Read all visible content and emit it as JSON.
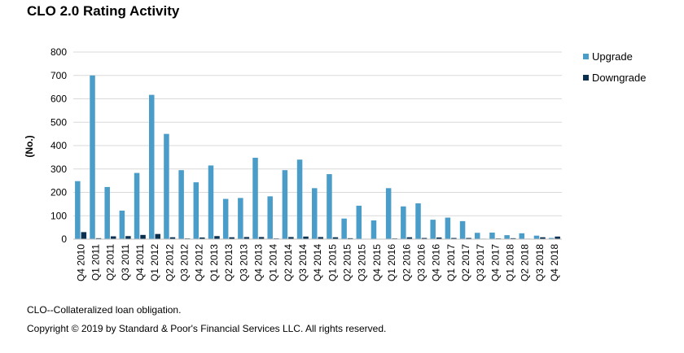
{
  "chart_data": {
    "type": "bar",
    "title": "CLO 2.0 Rating Activity",
    "ylabel": "(No.)",
    "xlabel": "",
    "ylim": [
      0,
      800
    ],
    "yticks": [
      0,
      100,
      200,
      300,
      400,
      500,
      600,
      700,
      800
    ],
    "grid": true,
    "legend_position": "right",
    "categories": [
      "Q4 2010",
      "Q1 2011",
      "Q2 2011",
      "Q3 2011",
      "Q4 2011",
      "Q1 2012",
      "Q2 2012",
      "Q3 2012",
      "Q4 2012",
      "Q1 2013",
      "Q2 2013",
      "Q3 2013",
      "Q4 2013",
      "Q1 2014",
      "Q2 2014",
      "Q3 2014",
      "Q4 2014",
      "Q1 2015",
      "Q2 2015",
      "Q3 2015",
      "Q4 2015",
      "Q1 2016",
      "Q2 2016",
      "Q3 2016",
      "Q4 2016",
      "Q1 2017",
      "Q2 2017",
      "Q3 2017",
      "Q4 2017",
      "Q1 2018",
      "Q2 2018",
      "Q3 2018",
      "Q4 2018"
    ],
    "series": [
      {
        "name": "Upgrade",
        "color": "#4a9cc9",
        "values": [
          248,
          700,
          223,
          122,
          283,
          617,
          450,
          295,
          243,
          315,
          172,
          176,
          348,
          183,
          295,
          340,
          218,
          278,
          88,
          143,
          80,
          218,
          140,
          153,
          83,
          92,
          77,
          27,
          28,
          17,
          25,
          15,
          5
        ]
      },
      {
        "name": "Downgrade",
        "color": "#0b2f4f",
        "values": [
          30,
          4,
          12,
          13,
          18,
          22,
          8,
          3,
          7,
          13,
          8,
          9,
          9,
          3,
          9,
          11,
          9,
          8,
          4,
          0,
          0,
          3,
          8,
          5,
          7,
          5,
          5,
          2,
          3,
          4,
          2,
          8,
          11
        ]
      }
    ]
  },
  "footnote": "CLO--Collateralized loan obligation.",
  "copyright": "Copyright © 2019 by Standard & Poor's Financial Services LLC. All rights reserved."
}
